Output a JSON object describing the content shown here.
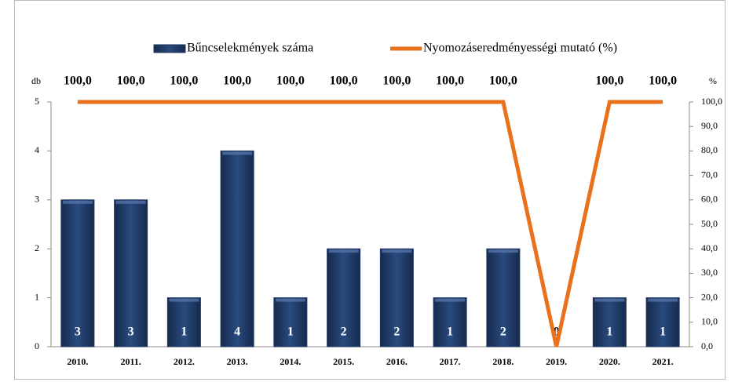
{
  "chart_data": {
    "type": "bar_line",
    "categories": [
      "2010.",
      "2011.",
      "2012.",
      "2013.",
      "2014.",
      "2015.",
      "2016.",
      "2017.",
      "2018.",
      "2019.",
      "2020.",
      "2021."
    ],
    "ylabel": "db",
    "y2label": "%",
    "ylim": [
      0,
      5
    ],
    "yticks": [
      0,
      1,
      2,
      3,
      4,
      5
    ],
    "y2lim": [
      0,
      100
    ],
    "y2ticks": [
      {
        "value": 0,
        "label": "0,0"
      },
      {
        "value": 10,
        "label": "10,0"
      },
      {
        "value": 20,
        "label": "20,0"
      },
      {
        "value": 30,
        "label": "30,0"
      },
      {
        "value": 40,
        "label": "40,0"
      },
      {
        "value": 50,
        "label": "50,0"
      },
      {
        "value": 60,
        "label": "60,0"
      },
      {
        "value": 70,
        "label": "70,0"
      },
      {
        "value": 80,
        "label": "80,0"
      },
      {
        "value": 90,
        "label": "90,0"
      },
      {
        "value": 100,
        "label": "100,0"
      }
    ],
    "legend": "top",
    "series": [
      {
        "name": "Bűncselekmények száma",
        "type": "bar",
        "color": "#1f3864",
        "values": [
          3,
          3,
          1,
          4,
          1,
          2,
          2,
          1,
          2,
          0,
          1,
          1
        ]
      },
      {
        "name": "Nyomozáseredményességi mutató (%)",
        "type": "line",
        "axis": "y2",
        "color": "#e9711c",
        "values": [
          100,
          100,
          100,
          100,
          100,
          100,
          100,
          100,
          100,
          0,
          100,
          100
        ],
        "value_labels": [
          "100,0",
          "100,0",
          "100,0",
          "100,0",
          "100,0",
          "100,0",
          "100,0",
          "100,0",
          "100,0",
          null,
          "100,0",
          "100,0"
        ]
      }
    ]
  }
}
